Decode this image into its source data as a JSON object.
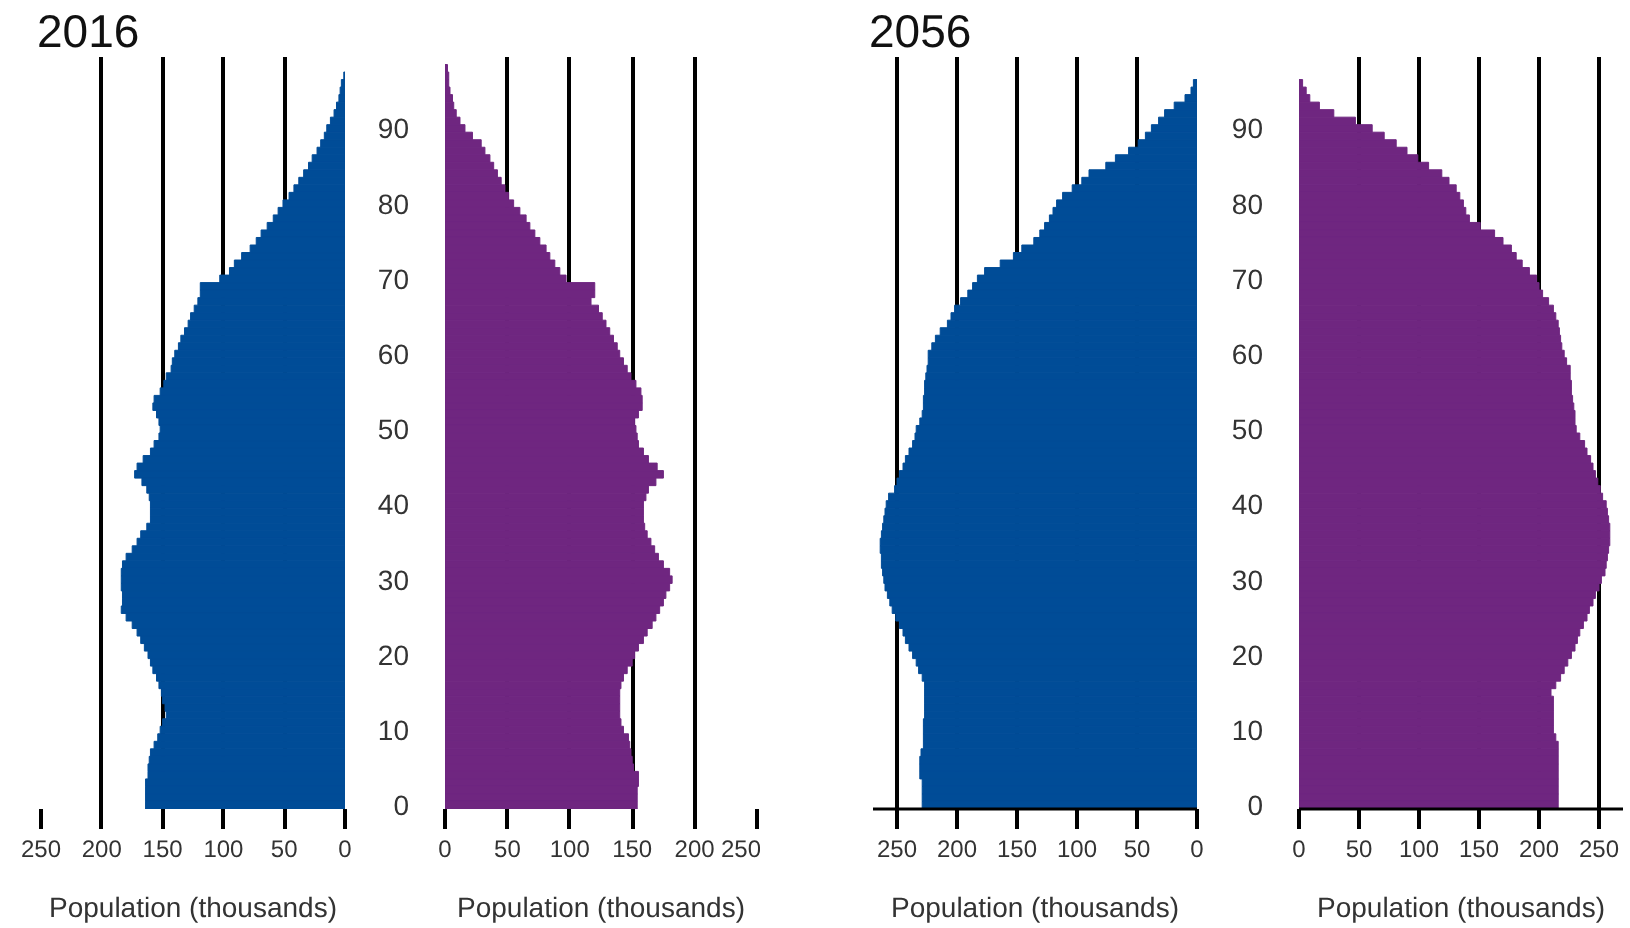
{
  "chart_data": [
    {
      "type": "bar",
      "orientation": "horizontal",
      "title": "2016",
      "xlabel": "Population (thousands)",
      "color": "#004c97",
      "xlim": [
        250,
        0
      ],
      "xticks": [
        250,
        200,
        150,
        100,
        50,
        0
      ],
      "grid": "x",
      "tick_labels": "x",
      "categories": [
        null,
        null,
        null,
        null,
        null,
        null,
        null,
        null,
        null,
        "90",
        null,
        null,
        null,
        null,
        null,
        null,
        null,
        null,
        null,
        "80",
        null,
        null,
        null,
        null,
        null,
        null,
        null,
        null,
        null,
        "70",
        null,
        null,
        null,
        null,
        null,
        null,
        null,
        null,
        null,
        "60",
        null,
        null,
        null,
        null,
        null,
        null,
        null,
        null,
        null,
        "50",
        null,
        null,
        null,
        null,
        null,
        null,
        null,
        null,
        null,
        "40",
        null,
        null,
        null,
        null,
        null,
        null,
        null,
        null,
        null,
        "30",
        null,
        null,
        null,
        null,
        null,
        null,
        null,
        null,
        null,
        "20",
        null,
        null,
        null,
        null,
        null,
        null,
        null,
        null,
        null,
        "10",
        null,
        null,
        null,
        null,
        null,
        null,
        null,
        null,
        null,
        "0"
      ],
      "values": [
        null,
        null,
        1,
        3,
        4,
        5,
        7,
        9,
        12,
        15,
        17,
        20,
        23,
        27,
        30,
        34,
        38,
        42,
        46,
        51,
        55,
        59,
        64,
        69,
        73,
        78,
        85,
        91,
        95,
        103,
        119,
        119,
        121,
        124,
        127,
        129,
        132,
        135,
        137,
        140,
        142,
        143,
        147,
        149,
        152,
        157,
        158,
        155,
        153,
        152,
        153,
        157,
        160,
        166,
        171,
        173,
        167,
        163,
        161,
        160,
        160,
        160,
        163,
        168,
        171,
        175,
        180,
        183,
        184,
        184,
        184,
        183,
        183,
        184,
        180,
        175,
        171,
        168,
        165,
        162,
        160,
        158,
        155,
        153,
        151,
        150,
        148,
        147,
        150,
        152,
        154,
        157,
        160,
        161,
        162,
        162,
        164,
        164,
        164,
        164
      ]
    },
    {
      "type": "bar",
      "orientation": "horizontal",
      "xlabel": "Population (thousands)",
      "color": "#6f2680",
      "xlim": [
        0,
        250
      ],
      "xticks": [
        0,
        50,
        100,
        150,
        200,
        250
      ],
      "grid": "x",
      "categories": [
        null,
        null,
        null,
        null,
        null,
        null,
        null,
        null,
        null,
        "90",
        null,
        null,
        null,
        null,
        null,
        null,
        null,
        null,
        null,
        "80",
        null,
        null,
        null,
        null,
        null,
        null,
        null,
        null,
        null,
        "70",
        null,
        null,
        null,
        null,
        null,
        null,
        null,
        null,
        null,
        "60",
        null,
        null,
        null,
        null,
        null,
        null,
        null,
        null,
        null,
        "50",
        null,
        null,
        null,
        null,
        null,
        null,
        null,
        null,
        null,
        "40",
        null,
        null,
        null,
        null,
        null,
        null,
        null,
        null,
        null,
        "30",
        null,
        null,
        null,
        null,
        null,
        null,
        null,
        null,
        null,
        "20",
        null,
        null,
        null,
        null,
        null,
        null,
        null,
        null,
        null,
        "10",
        null,
        null,
        null,
        null,
        null,
        null,
        null,
        null,
        null,
        "0"
      ],
      "values": [
        null,
        2,
        3,
        3,
        4,
        6,
        7,
        9,
        12,
        16,
        22,
        29,
        32,
        36,
        39,
        42,
        45,
        48,
        51,
        55,
        60,
        65,
        68,
        72,
        76,
        81,
        84,
        88,
        92,
        97,
        120,
        120,
        117,
        123,
        126,
        129,
        132,
        135,
        138,
        140,
        143,
        146,
        149,
        153,
        157,
        158,
        158,
        155,
        152,
        153,
        154,
        155,
        159,
        163,
        170,
        175,
        169,
        163,
        161,
        159,
        159,
        159,
        160,
        162,
        165,
        168,
        171,
        175,
        180,
        182,
        180,
        177,
        175,
        172,
        169,
        166,
        162,
        159,
        155,
        152,
        150,
        146,
        143,
        141,
        140,
        140,
        140,
        140,
        141,
        143,
        147,
        148,
        149,
        150,
        151,
        155,
        155,
        154,
        154,
        154
      ]
    },
    {
      "type": "bar",
      "orientation": "horizontal",
      "title": "2056",
      "xlabel": "Population (thousands)",
      "color": "#004c97",
      "xlim": [
        270,
        0
      ],
      "xticks": [
        250,
        200,
        150,
        100,
        50,
        0
      ],
      "grid": "x",
      "tick_labels": "x",
      "categories": [
        null,
        null,
        null,
        null,
        null,
        null,
        null,
        null,
        null,
        "90",
        null,
        null,
        null,
        null,
        null,
        null,
        null,
        null,
        null,
        "80",
        null,
        null,
        null,
        null,
        null,
        null,
        null,
        null,
        null,
        "70",
        null,
        null,
        null,
        null,
        null,
        null,
        null,
        null,
        null,
        "60",
        null,
        null,
        null,
        null,
        null,
        null,
        null,
        null,
        null,
        "50",
        null,
        null,
        null,
        null,
        null,
        null,
        null,
        null,
        null,
        "40",
        null,
        null,
        null,
        null,
        null,
        null,
        null,
        null,
        null,
        "30",
        null,
        null,
        null,
        null,
        null,
        null,
        null,
        null,
        null,
        "20",
        null,
        null,
        null,
        null,
        null,
        null,
        null,
        null,
        null,
        "10",
        null,
        null,
        null,
        null,
        null,
        null,
        null,
        null,
        null,
        "0"
      ],
      "values": [
        null,
        null,
        null,
        3,
        5,
        10,
        19,
        27,
        32,
        38,
        43,
        49,
        57,
        68,
        76,
        90,
        96,
        104,
        112,
        117,
        120,
        123,
        127,
        131,
        136,
        146,
        153,
        164,
        177,
        183,
        187,
        191,
        197,
        202,
        205,
        208,
        214,
        218,
        221,
        224,
        224,
        225,
        226,
        227,
        227,
        228,
        228,
        229,
        231,
        234,
        235,
        237,
        240,
        243,
        245,
        248,
        250,
        252,
        257,
        259,
        260,
        261,
        262,
        263,
        264,
        264,
        263,
        263,
        262,
        261,
        260,
        258,
        256,
        254,
        251,
        248,
        245,
        243,
        240,
        237,
        234,
        232,
        229,
        227,
        227,
        227,
        227,
        227,
        228,
        228,
        228,
        228,
        230,
        231,
        231,
        231,
        229,
        229,
        229,
        229
      ]
    },
    {
      "type": "bar",
      "orientation": "horizontal",
      "xlabel": "Population (thousands)",
      "color": "#6f2680",
      "xlim": [
        0,
        270
      ],
      "xticks": [
        0,
        50,
        100,
        150,
        200,
        250
      ],
      "grid": "x",
      "categories": [
        null,
        null,
        null,
        null,
        null,
        null,
        null,
        null,
        null,
        "90",
        null,
        null,
        null,
        null,
        null,
        null,
        null,
        null,
        null,
        "80",
        null,
        null,
        null,
        null,
        null,
        null,
        null,
        null,
        null,
        "70",
        null,
        null,
        null,
        null,
        null,
        null,
        null,
        null,
        null,
        "60",
        null,
        null,
        null,
        null,
        null,
        null,
        null,
        null,
        null,
        "50",
        null,
        null,
        null,
        null,
        null,
        null,
        null,
        null,
        null,
        "40",
        null,
        null,
        null,
        null,
        null,
        null,
        null,
        null,
        null,
        "30",
        null,
        null,
        null,
        null,
        null,
        null,
        null,
        null,
        null,
        "20",
        null,
        null,
        null,
        null,
        null,
        null,
        null,
        null,
        null,
        "10",
        null,
        null,
        null,
        null,
        null,
        null,
        null,
        null,
        null,
        "0"
      ],
      "values": [
        null,
        null,
        null,
        3,
        6,
        9,
        17,
        29,
        47,
        61,
        71,
        81,
        90,
        99,
        108,
        119,
        125,
        131,
        134,
        137,
        139,
        142,
        151,
        163,
        170,
        177,
        181,
        186,
        192,
        198,
        200,
        203,
        208,
        212,
        214,
        216,
        217,
        218,
        219,
        221,
        223,
        226,
        226,
        227,
        227,
        228,
        229,
        230,
        230,
        231,
        234,
        238,
        240,
        243,
        245,
        247,
        249,
        251,
        253,
        256,
        257,
        258,
        259,
        259,
        259,
        258,
        257,
        256,
        255,
        252,
        250,
        247,
        245,
        242,
        240,
        237,
        234,
        232,
        230,
        227,
        224,
        221,
        218,
        214,
        210,
        212,
        212,
        212,
        212,
        212,
        214,
        216,
        216,
        216,
        216,
        216,
        216,
        216,
        216,
        216
      ]
    }
  ]
}
